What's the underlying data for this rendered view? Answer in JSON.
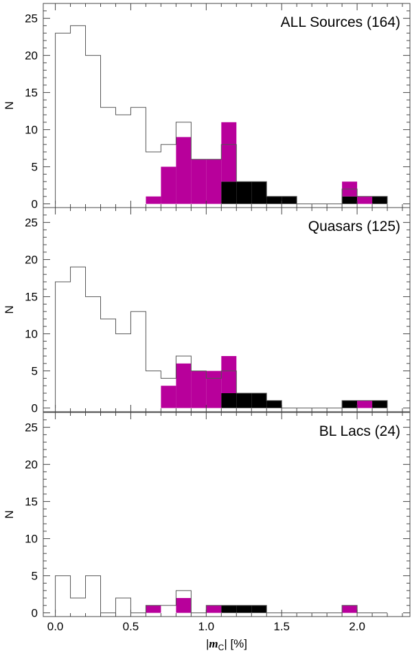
{
  "chart_data": {
    "type": "bar",
    "chart_kind": "stacked histogram",
    "bin_width": 0.1,
    "bins_start": [
      0.0,
      0.1,
      0.2,
      0.3,
      0.4,
      0.5,
      0.6,
      0.7,
      0.8,
      0.9,
      1.0,
      1.1,
      1.2,
      1.3,
      1.4,
      1.5,
      1.6,
      1.7,
      1.8,
      1.9,
      2.0,
      2.1
    ],
    "xlim": [
      -0.08,
      2.35
    ],
    "ylim": [
      -0.5,
      27
    ],
    "xticks": [
      "0.0",
      "0.5",
      "1.0",
      "1.5",
      "2.0"
    ],
    "yticks": [
      "0",
      "5",
      "10",
      "15",
      "20",
      "25"
    ],
    "x_label": {
      "prefix": "|",
      "symbol": "m",
      "subscript": "C",
      "suffix": "| [%]"
    },
    "ylabel": "N",
    "colors": {
      "outline": "#555555",
      "magenta": "#b8009b",
      "black": "#000000"
    },
    "panels": [
      {
        "title": "ALL Sources (164)",
        "outline": [
          23,
          24,
          20,
          13,
          12,
          13,
          7,
          8,
          11,
          6,
          6,
          8,
          3,
          3,
          1,
          1,
          0,
          0,
          0,
          2,
          1,
          1
        ],
        "magenta": [
          0,
          0,
          0,
          0,
          0,
          0,
          1,
          5,
          9,
          6,
          6,
          8,
          0,
          0,
          0,
          0,
          0,
          0,
          0,
          2,
          1,
          0
        ],
        "black": [
          0,
          0,
          0,
          0,
          0,
          0,
          0,
          0,
          0,
          0,
          0,
          3,
          3,
          3,
          1,
          1,
          0,
          0,
          0,
          1,
          0,
          1
        ]
      },
      {
        "title": "Quasars (125)",
        "outline": [
          17,
          19,
          15,
          12,
          10,
          13,
          5,
          4,
          7,
          5,
          4,
          5,
          2,
          2,
          1,
          0,
          0,
          0,
          0,
          1,
          1,
          1
        ],
        "magenta": [
          0,
          0,
          0,
          0,
          0,
          0,
          0,
          3,
          6,
          5,
          5,
          5,
          0,
          0,
          0,
          0,
          0,
          0,
          0,
          0,
          1,
          0
        ],
        "black": [
          0,
          0,
          0,
          0,
          0,
          0,
          0,
          0,
          0,
          0,
          0,
          2,
          2,
          2,
          1,
          0,
          0,
          0,
          0,
          1,
          0,
          1
        ]
      },
      {
        "title": "BL Lacs (24)",
        "outline": [
          5,
          2,
          5,
          0,
          2,
          0,
          1,
          1,
          3,
          0,
          1,
          1,
          1,
          1,
          0,
          0,
          0,
          0,
          0,
          1,
          0,
          0
        ],
        "magenta": [
          0,
          0,
          0,
          0,
          0,
          0,
          1,
          0,
          2,
          0,
          1,
          0,
          0,
          0,
          0,
          0,
          0,
          0,
          0,
          1,
          0,
          0
        ],
        "black": [
          0,
          0,
          0,
          0,
          0,
          0,
          0,
          0,
          0,
          0,
          0,
          1,
          1,
          1,
          0,
          0,
          0,
          0,
          0,
          0,
          0,
          0
        ]
      }
    ]
  }
}
